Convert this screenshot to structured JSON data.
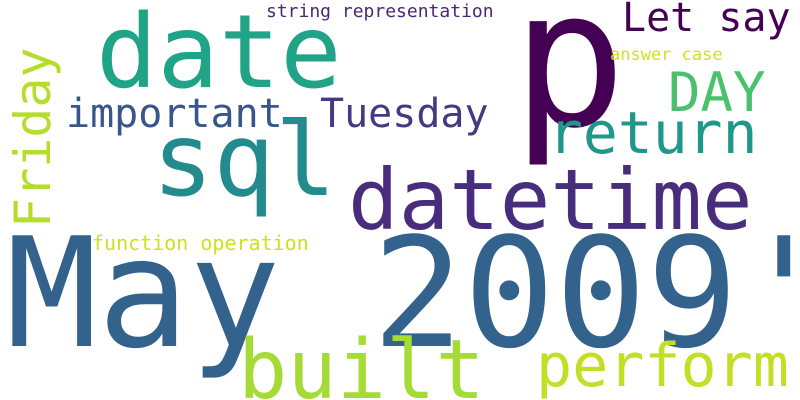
{
  "words": {
    "may_2009": {
      "text": "May 2009'",
      "color": "#33638d"
    },
    "p": {
      "text": "p",
      "color": "#440154"
    },
    "date": {
      "text": "date",
      "color": "#20a386"
    },
    "sql": {
      "text": "sql",
      "color": "#238a8d"
    },
    "datetime": {
      "text": "datetime",
      "color": "#472d7b"
    },
    "built": {
      "text": "built",
      "color": "#a5db36"
    },
    "perform": {
      "text": "perform",
      "color": "#c2df23"
    },
    "return": {
      "text": "return",
      "color": "#1f988b"
    },
    "friday": {
      "text": "Friday",
      "color": "#b5de2b"
    },
    "day": {
      "text": "DAY",
      "color": "#4ac16d"
    },
    "let_say": {
      "text": "Let say",
      "color": "#440154"
    },
    "important": {
      "text": "important",
      "color": "#39568c"
    },
    "tuesday": {
      "text": "Tuesday",
      "color": "#443983"
    },
    "function_operation": {
      "text": "function operation",
      "color": "#cde11d"
    },
    "answer_case": {
      "text": "answer case",
      "color": "#d0e11c"
    },
    "string_representation": {
      "text": "string representation",
      "color": "#482878"
    }
  }
}
